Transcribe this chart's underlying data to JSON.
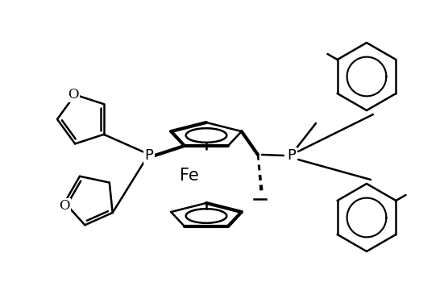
{
  "background_color": "#ffffff",
  "line_color": "#000000",
  "lw": 1.8,
  "lw_bold": 3.0,
  "fig_width": 5.51,
  "fig_height": 3.5,
  "dpi": 100,
  "fe_label": "Fe",
  "p_label": "P",
  "o_label": "O",
  "fe_fontsize": 15,
  "p_fontsize": 13,
  "o_fontsize": 12
}
